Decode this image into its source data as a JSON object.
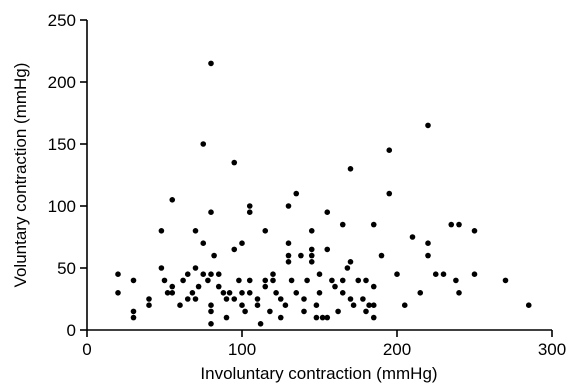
{
  "chart_data": {
    "type": "scatter",
    "title": "",
    "xlabel": "Involuntary contraction (mmHg)",
    "ylabel": "Voluntary contraction (mmHg)",
    "xlim": [
      0,
      300
    ],
    "ylim": [
      0,
      250
    ],
    "xticks": [
      0,
      100,
      200,
      300
    ],
    "yticks": [
      0,
      50,
      100,
      150,
      200,
      250
    ],
    "grid": false,
    "legend": "none",
    "marker_color": "#000000",
    "series": [
      {
        "points": [
          [
            20,
            45
          ],
          [
            20,
            30
          ],
          [
            30,
            40
          ],
          [
            30,
            15
          ],
          [
            30,
            10
          ],
          [
            40,
            25
          ],
          [
            40,
            20
          ],
          [
            48,
            80
          ],
          [
            48,
            50
          ],
          [
            50,
            40
          ],
          [
            52,
            30
          ],
          [
            55,
            105
          ],
          [
            55,
            35
          ],
          [
            55,
            30
          ],
          [
            60,
            20
          ],
          [
            62,
            40
          ],
          [
            65,
            45
          ],
          [
            65,
            25
          ],
          [
            68,
            30
          ],
          [
            70,
            80
          ],
          [
            70,
            50
          ],
          [
            70,
            25
          ],
          [
            72,
            35
          ],
          [
            75,
            150
          ],
          [
            75,
            70
          ],
          [
            75,
            45
          ],
          [
            78,
            40
          ],
          [
            80,
            215
          ],
          [
            80,
            95
          ],
          [
            80,
            45
          ],
          [
            80,
            20
          ],
          [
            80,
            15
          ],
          [
            80,
            5
          ],
          [
            82,
            60
          ],
          [
            85,
            45
          ],
          [
            85,
            35
          ],
          [
            88,
            30
          ],
          [
            90,
            25
          ],
          [
            90,
            10
          ],
          [
            92,
            30
          ],
          [
            95,
            135
          ],
          [
            95,
            65
          ],
          [
            95,
            25
          ],
          [
            98,
            40
          ],
          [
            100,
            70
          ],
          [
            100,
            30
          ],
          [
            100,
            20
          ],
          [
            102,
            15
          ],
          [
            105,
            100
          ],
          [
            105,
            95
          ],
          [
            105,
            40
          ],
          [
            105,
            30
          ],
          [
            110,
            25
          ],
          [
            110,
            20
          ],
          [
            112,
            5
          ],
          [
            115,
            80
          ],
          [
            115,
            40
          ],
          [
            115,
            35
          ],
          [
            118,
            15
          ],
          [
            120,
            45
          ],
          [
            120,
            40
          ],
          [
            122,
            30
          ],
          [
            125,
            25
          ],
          [
            125,
            10
          ],
          [
            128,
            20
          ],
          [
            130,
            100
          ],
          [
            130,
            70
          ],
          [
            130,
            60
          ],
          [
            130,
            55
          ],
          [
            132,
            40
          ],
          [
            135,
            110
          ],
          [
            135,
            30
          ],
          [
            138,
            60
          ],
          [
            140,
            25
          ],
          [
            140,
            15
          ],
          [
            142,
            40
          ],
          [
            145,
            80
          ],
          [
            145,
            65
          ],
          [
            145,
            60
          ],
          [
            145,
            55
          ],
          [
            148,
            20
          ],
          [
            148,
            10
          ],
          [
            150,
            45
          ],
          [
            150,
            30
          ],
          [
            152,
            10
          ],
          [
            155,
            95
          ],
          [
            155,
            65
          ],
          [
            155,
            10
          ],
          [
            158,
            40
          ],
          [
            160,
            35
          ],
          [
            162,
            15
          ],
          [
            165,
            85
          ],
          [
            165,
            40
          ],
          [
            165,
            30
          ],
          [
            168,
            50
          ],
          [
            170,
            130
          ],
          [
            170,
            55
          ],
          [
            170,
            25
          ],
          [
            172,
            20
          ],
          [
            175,
            40
          ],
          [
            178,
            25
          ],
          [
            180,
            40
          ],
          [
            180,
            15
          ],
          [
            182,
            20
          ],
          [
            185,
            85
          ],
          [
            185,
            35
          ],
          [
            185,
            20
          ],
          [
            185,
            10
          ],
          [
            190,
            60
          ],
          [
            195,
            145
          ],
          [
            195,
            110
          ],
          [
            200,
            45
          ],
          [
            205,
            20
          ],
          [
            210,
            75
          ],
          [
            215,
            30
          ],
          [
            220,
            165
          ],
          [
            220,
            70
          ],
          [
            220,
            60
          ],
          [
            225,
            45
          ],
          [
            230,
            45
          ],
          [
            235,
            85
          ],
          [
            238,
            40
          ],
          [
            240,
            85
          ],
          [
            240,
            30
          ],
          [
            250,
            80
          ],
          [
            250,
            45
          ],
          [
            270,
            40
          ],
          [
            285,
            20
          ]
        ]
      }
    ]
  }
}
